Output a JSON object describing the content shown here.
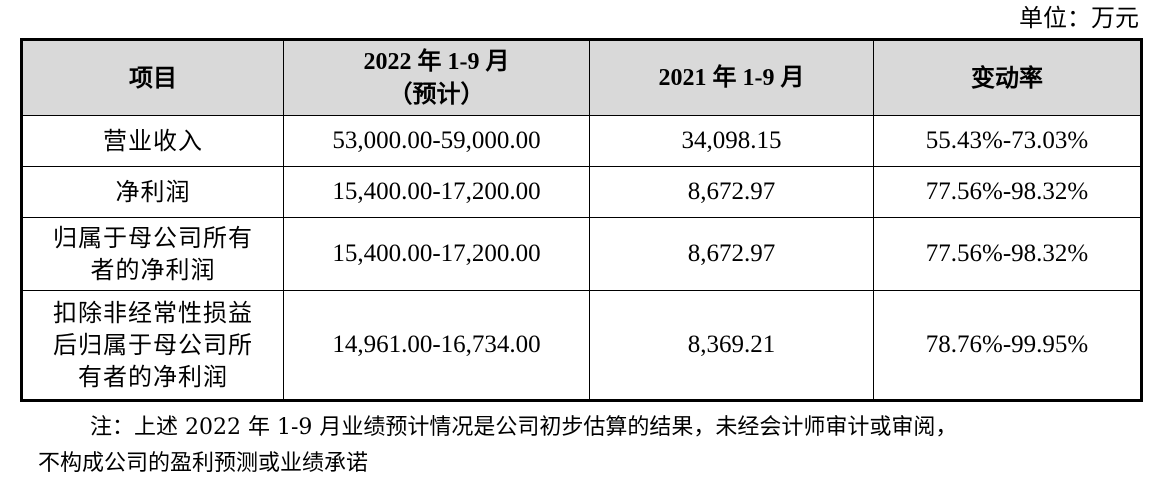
{
  "unit_label": "单位：万元",
  "table": {
    "headers": [
      {
        "lines": [
          "项目"
        ]
      },
      {
        "lines": [
          "2022 年 1-9 月",
          "（预计）"
        ]
      },
      {
        "lines": [
          "2021 年 1-9 月"
        ]
      },
      {
        "lines": [
          "变动率"
        ]
      }
    ],
    "rows": [
      {
        "item_lines": [
          "营业收入"
        ],
        "value_2022": "53,000.00-59,000.00",
        "value_2021": "34,098.15",
        "change": "55.43%-73.03%"
      },
      {
        "item_lines": [
          "净利润"
        ],
        "value_2022": "15,400.00-17,200.00",
        "value_2021": "8,672.97",
        "change": "77.56%-98.32%"
      },
      {
        "item_lines": [
          "归属于母公司所有",
          "者的净利润"
        ],
        "value_2022": "15,400.00-17,200.00",
        "value_2021": "8,672.97",
        "change": "77.56%-98.32%"
      },
      {
        "item_lines": [
          "扣除非经常性损益",
          "后归属于母公司所",
          "有者的净利润"
        ],
        "value_2022": "14,961.00-16,734.00",
        "value_2021": "8,369.21",
        "change": "78.76%-99.95%"
      }
    ]
  },
  "note": {
    "line1": "注：上述 2022 年 1-9 月业绩预计情况是公司初步估算的结果，未经会计师审计或审阅，",
    "line2": "不构成公司的盈利预测或业绩承诺"
  }
}
